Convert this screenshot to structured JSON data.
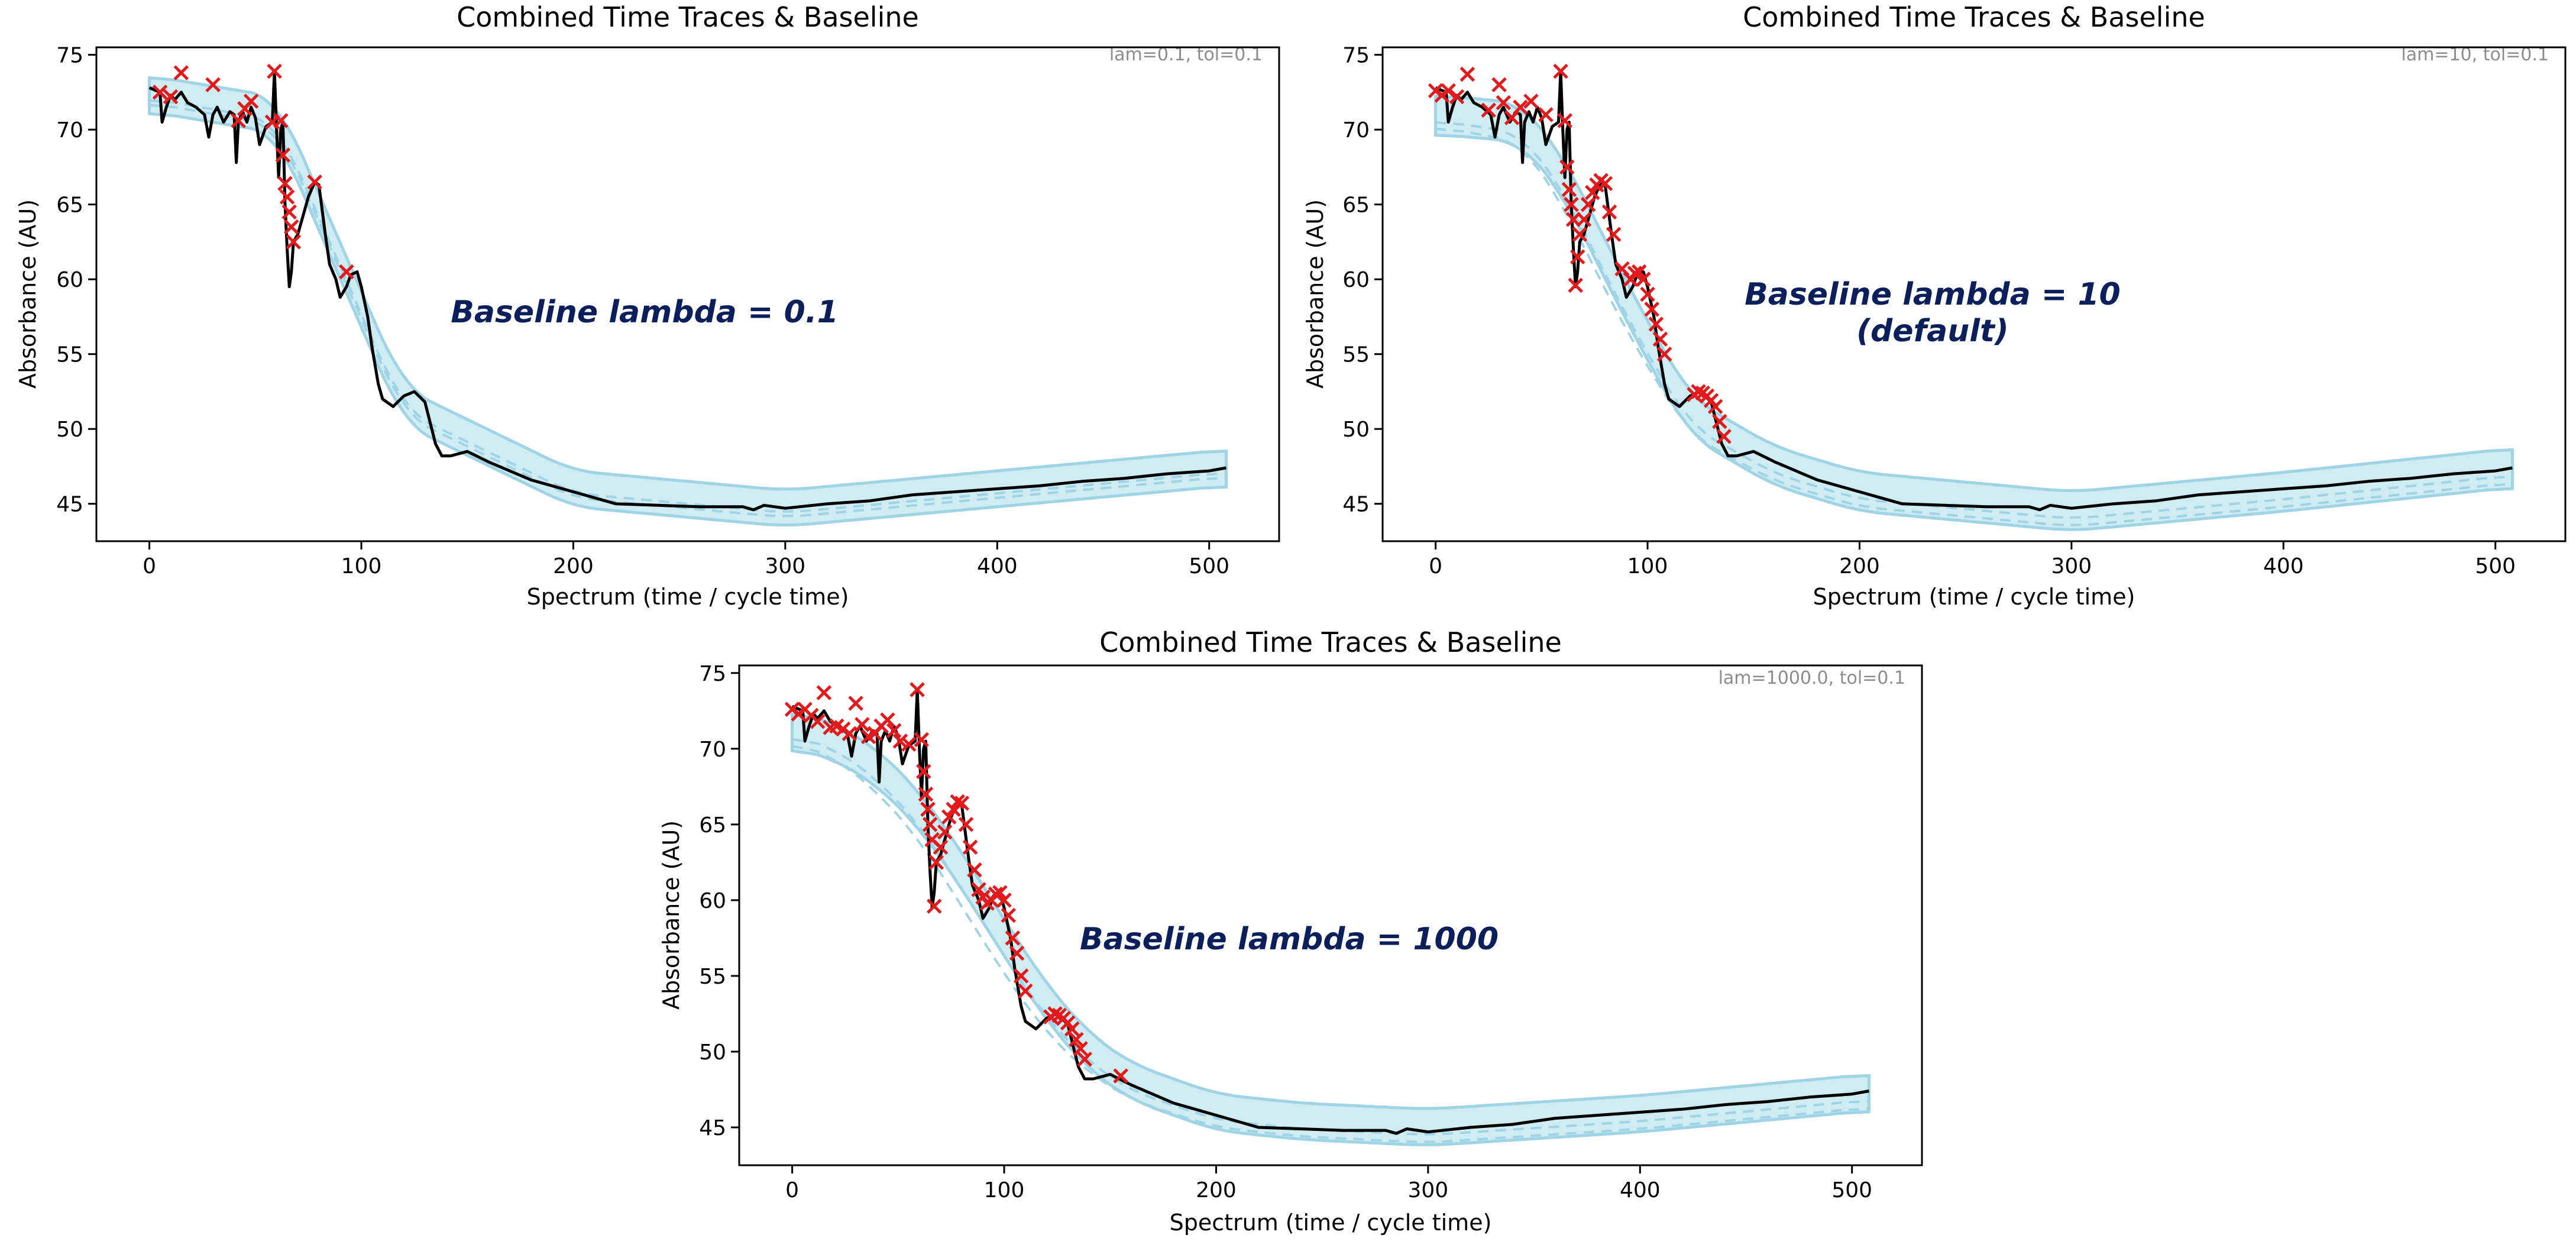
{
  "figure": {
    "background": "#ffffff",
    "colors": {
      "trace": "#000000",
      "band": "#a8dcea",
      "band_edge": "#9fd3e6",
      "dashed": "#9fd3e6",
      "peak_marker": "#e31a1c",
      "annotation": "#0b1f5c",
      "params_text": "#8c8c8c"
    }
  },
  "chart_data": [
    {
      "type": "line",
      "title": "Combined Time Traces & Baseline",
      "xlabel": "Spectrum (time / cycle time)",
      "ylabel": "Absorbance (AU)",
      "params": "lam=0.1, tol=0.1",
      "annotation": [
        "Baseline lambda = 0.1"
      ],
      "xlim": [
        -25,
        533
      ],
      "ylim": [
        42.5,
        75.5
      ],
      "xticks": [
        0,
        100,
        200,
        300,
        400,
        500
      ],
      "yticks": [
        45,
        50,
        55,
        60,
        65,
        70,
        75
      ],
      "grid": false,
      "trace": {
        "x": [
          0,
          5,
          6,
          8,
          10,
          12,
          15,
          18,
          22,
          26,
          28,
          30,
          32,
          35,
          38,
          40,
          41,
          42,
          44,
          46,
          48,
          50,
          52,
          55,
          58,
          59,
          60,
          61,
          62,
          63,
          64,
          65,
          66,
          67,
          68,
          70,
          72,
          75,
          78,
          80,
          83,
          85,
          88,
          90,
          93,
          95,
          98,
          100,
          103,
          105,
          108,
          110,
          115,
          120,
          125,
          130,
          135,
          138,
          142,
          150,
          160,
          170,
          180,
          200,
          220,
          240,
          260,
          280,
          285,
          290,
          300,
          320,
          340,
          360,
          380,
          400,
          420,
          440,
          460,
          480,
          500,
          508
        ],
        "y": [
          72.8,
          72.5,
          70.5,
          71.5,
          72.3,
          72.0,
          72.5,
          71.8,
          71.5,
          71.0,
          69.5,
          71.0,
          71.5,
          70.5,
          71.2,
          71.0,
          67.8,
          70.5,
          71.2,
          70.5,
          71.5,
          70.8,
          69.0,
          70.2,
          70.5,
          73.9,
          70.0,
          66.8,
          70.0,
          70.5,
          65.0,
          62.0,
          59.5,
          60.5,
          62.5,
          63.0,
          64.0,
          65.5,
          66.5,
          66.3,
          63.0,
          61.0,
          60.0,
          58.8,
          59.5,
          60.3,
          60.5,
          59.5,
          57.5,
          55.5,
          53.0,
          52.0,
          51.5,
          52.2,
          52.5,
          51.8,
          49.0,
          48.2,
          48.2,
          48.5,
          47.8,
          47.2,
          46.6,
          45.8,
          45.0,
          44.9,
          44.8,
          44.8,
          44.6,
          44.9,
          44.7,
          45.0,
          45.2,
          45.6,
          45.8,
          46.0,
          46.2,
          46.5,
          46.7,
          47.0,
          47.2,
          47.4
        ]
      },
      "baseline_x": [
        0,
        60,
        120,
        200,
        300,
        400,
        508
      ],
      "baseline_y": [
        72.4,
        71.0,
        51.5,
        46.0,
        44.7,
        46.0,
        47.4
      ],
      "band_halfwidth": 1.2,
      "baseline_dashed": [
        {
          "x": [
            0,
            60,
            120,
            200,
            300,
            400,
            508
          ],
          "y": [
            72.1,
            70.6,
            51.2,
            45.7,
            44.4,
            45.7,
            47.1
          ]
        },
        {
          "x": [
            0,
            60,
            120,
            200,
            300,
            400,
            508
          ],
          "y": [
            71.8,
            70.3,
            50.9,
            45.4,
            44.1,
            45.4,
            46.8
          ]
        }
      ],
      "peaks": {
        "x": [
          5,
          10,
          15,
          30,
          42,
          45,
          48,
          58,
          59,
          62,
          63,
          64,
          65,
          66,
          67,
          68,
          78,
          93
        ],
        "y": [
          72.5,
          72.2,
          73.8,
          73.0,
          70.6,
          71.4,
          71.9,
          70.5,
          73.9,
          70.6,
          68.3,
          66.4,
          65.5,
          64.5,
          63.5,
          62.5,
          66.5,
          60.5
        ]
      }
    },
    {
      "type": "line",
      "title": "Combined Time Traces & Baseline",
      "xlabel": "Spectrum (time / cycle time)",
      "ylabel": "Absorbance (AU)",
      "params": "lam=10, tol=0.1",
      "annotation": [
        "Baseline lambda = 10",
        "(default)"
      ],
      "xlim": [
        -25,
        533
      ],
      "ylim": [
        42.5,
        75.5
      ],
      "xticks": [
        0,
        100,
        200,
        300,
        400,
        500
      ],
      "yticks": [
        45,
        50,
        55,
        60,
        65,
        70,
        75
      ],
      "grid": false,
      "trace": {
        "x": [
          0,
          5,
          6,
          8,
          10,
          12,
          15,
          18,
          22,
          26,
          28,
          30,
          32,
          35,
          38,
          40,
          41,
          42,
          44,
          46,
          48,
          50,
          52,
          55,
          58,
          59,
          60,
          61,
          62,
          63,
          64,
          65,
          66,
          67,
          68,
          70,
          72,
          75,
          78,
          80,
          83,
          85,
          88,
          90,
          93,
          95,
          98,
          100,
          103,
          105,
          108,
          110,
          115,
          120,
          125,
          130,
          135,
          138,
          142,
          150,
          160,
          170,
          180,
          200,
          220,
          240,
          260,
          280,
          285,
          290,
          300,
          320,
          340,
          360,
          380,
          400,
          420,
          440,
          460,
          480,
          500,
          508
        ],
        "y": [
          72.8,
          72.5,
          70.5,
          71.5,
          72.3,
          72.0,
          72.5,
          71.8,
          71.5,
          71.0,
          69.5,
          71.0,
          71.5,
          70.5,
          71.2,
          71.0,
          67.8,
          70.5,
          71.2,
          70.5,
          71.5,
          70.8,
          69.0,
          70.2,
          70.5,
          73.9,
          70.0,
          66.8,
          70.0,
          70.5,
          65.0,
          62.0,
          59.5,
          60.5,
          62.5,
          63.0,
          64.0,
          65.5,
          66.5,
          66.3,
          63.0,
          61.0,
          60.0,
          58.8,
          59.5,
          60.3,
          60.5,
          59.5,
          57.5,
          55.5,
          53.0,
          52.0,
          51.5,
          52.2,
          52.5,
          51.8,
          49.0,
          48.2,
          48.2,
          48.5,
          47.8,
          47.2,
          46.6,
          45.8,
          45.0,
          44.9,
          44.8,
          44.8,
          44.6,
          44.9,
          44.7,
          45.0,
          45.2,
          45.6,
          45.8,
          46.0,
          46.2,
          46.5,
          46.7,
          47.0,
          47.2,
          47.4
        ]
      },
      "baseline_x": [
        0,
        40,
        60,
        90,
        120,
        160,
        200,
        300,
        400,
        508
      ],
      "baseline_y": [
        71.0,
        70.5,
        67.0,
        58.5,
        50.8,
        47.5,
        45.8,
        44.5,
        45.8,
        47.4
      ],
      "band_halfwidth": 1.3,
      "baseline_dashed": [
        {
          "x": [
            0,
            40,
            60,
            90,
            120,
            160,
            200,
            300,
            400,
            508
          ],
          "y": [
            70.6,
            69.8,
            66.0,
            57.5,
            50.2,
            47.0,
            45.3,
            44.0,
            45.3,
            46.9
          ]
        },
        {
          "x": [
            0,
            40,
            60,
            90,
            120,
            160,
            200,
            300,
            400,
            508
          ],
          "y": [
            70.2,
            69.2,
            65.0,
            56.5,
            49.6,
            46.5,
            44.8,
            43.5,
            44.8,
            46.4
          ]
        }
      ],
      "peaks": {
        "x": [
          0,
          3,
          6,
          10,
          15,
          25,
          30,
          32,
          36,
          40,
          45,
          52,
          59,
          61,
          62,
          63,
          64,
          65,
          66,
          67,
          68,
          70,
          72,
          74,
          76,
          78,
          80,
          82,
          84,
          88,
          92,
          94,
          96,
          98,
          100,
          102,
          104,
          106,
          108,
          122,
          124,
          126,
          128,
          130,
          132,
          134,
          136
        ],
        "y": [
          72.6,
          72.3,
          72.6,
          72.2,
          73.7,
          71.3,
          73.0,
          71.8,
          70.8,
          71.5,
          71.9,
          71.0,
          73.9,
          70.6,
          67.5,
          66.0,
          65.0,
          64.0,
          59.6,
          61.5,
          63.0,
          64.0,
          65.0,
          65.8,
          66.3,
          66.6,
          66.4,
          64.5,
          63.0,
          60.7,
          60.0,
          60.4,
          60.5,
          60.0,
          59.0,
          58.0,
          57.0,
          56.0,
          55.0,
          52.3,
          52.5,
          52.4,
          52.2,
          51.9,
          51.5,
          50.5,
          49.5
        ]
      }
    },
    {
      "type": "line",
      "title": "Combined Time Traces & Baseline",
      "xlabel": "Spectrum (time / cycle time)",
      "ylabel": "Absorbance (AU)",
      "params": "lam=1000.0, tol=0.1",
      "annotation": [
        "Baseline lambda = 1000"
      ],
      "xlim": [
        -25,
        533
      ],
      "ylim": [
        42.5,
        75.5
      ],
      "xticks": [
        0,
        100,
        200,
        300,
        400,
        500
      ],
      "yticks": [
        45,
        50,
        55,
        60,
        65,
        70,
        75
      ],
      "grid": false,
      "trace": {
        "x": [
          0,
          5,
          6,
          8,
          10,
          12,
          15,
          18,
          22,
          26,
          28,
          30,
          32,
          35,
          38,
          40,
          41,
          42,
          44,
          46,
          48,
          50,
          52,
          55,
          58,
          59,
          60,
          61,
          62,
          63,
          64,
          65,
          66,
          67,
          68,
          70,
          72,
          75,
          78,
          80,
          83,
          85,
          88,
          90,
          93,
          95,
          98,
          100,
          103,
          105,
          108,
          110,
          115,
          120,
          125,
          130,
          135,
          138,
          142,
          150,
          160,
          170,
          180,
          200,
          220,
          240,
          260,
          280,
          285,
          290,
          300,
          320,
          340,
          360,
          380,
          400,
          420,
          440,
          460,
          480,
          500,
          508
        ],
        "y": [
          72.8,
          72.5,
          70.5,
          71.5,
          72.3,
          72.0,
          72.5,
          71.8,
          71.5,
          71.0,
          69.5,
          71.0,
          71.5,
          70.5,
          71.2,
          71.0,
          67.8,
          70.5,
          71.2,
          70.5,
          71.5,
          70.8,
          69.0,
          70.2,
          70.5,
          73.9,
          70.0,
          66.8,
          70.0,
          70.5,
          65.0,
          62.0,
          59.5,
          60.5,
          62.5,
          63.0,
          64.0,
          65.5,
          66.5,
          66.3,
          63.0,
          61.0,
          60.0,
          58.8,
          59.5,
          60.3,
          60.5,
          59.5,
          57.5,
          55.5,
          53.0,
          52.0,
          51.5,
          52.2,
          52.5,
          51.8,
          49.0,
          48.2,
          48.2,
          48.5,
          47.8,
          47.2,
          46.6,
          45.8,
          45.0,
          44.9,
          44.8,
          44.8,
          44.6,
          44.9,
          44.7,
          45.0,
          45.2,
          45.6,
          45.8,
          46.0,
          46.2,
          46.5,
          46.7,
          47.0,
          47.2,
          47.4
        ]
      },
      "baseline_x": [
        0,
        20,
        40,
        60,
        80,
        100,
        120,
        140,
        160,
        200,
        240,
        300,
        400,
        508
      ],
      "baseline_y": [
        71.3,
        70.5,
        68.8,
        66.0,
        62.0,
        57.5,
        53.2,
        50.0,
        48.0,
        46.0,
        45.4,
        45.0,
        45.9,
        47.3
      ],
      "band_halfwidth": 1.2,
      "baseline_dashed": [
        {
          "x": [
            0,
            20,
            40,
            60,
            80,
            100,
            120,
            140,
            160,
            200,
            240,
            300,
            400,
            508
          ],
          "y": [
            70.9,
            70.0,
            68.0,
            65.0,
            60.8,
            56.3,
            52.2,
            49.3,
            47.4,
            45.5,
            44.9,
            44.5,
            45.4,
            46.8
          ]
        },
        {
          "x": [
            0,
            20,
            40,
            60,
            80,
            100,
            120,
            140,
            160,
            200,
            240,
            300,
            400,
            508
          ],
          "y": [
            70.5,
            69.4,
            67.2,
            64.0,
            59.6,
            55.1,
            51.2,
            48.6,
            46.8,
            45.0,
            44.4,
            44.0,
            44.9,
            46.3
          ]
        }
      ],
      "peaks": {
        "x": [
          0,
          3,
          6,
          9,
          12,
          15,
          18,
          21,
          24,
          27,
          30,
          33,
          36,
          39,
          42,
          45,
          48,
          51,
          55,
          59,
          61,
          62,
          63,
          64,
          65,
          66,
          67,
          68,
          70,
          72,
          74,
          76,
          78,
          80,
          82,
          84,
          86,
          88,
          90,
          92,
          94,
          96,
          98,
          100,
          102,
          104,
          106,
          108,
          110,
          122,
          124,
          126,
          128,
          130,
          132,
          134,
          136,
          138,
          155
        ],
        "y": [
          72.6,
          72.3,
          72.6,
          72.2,
          71.8,
          73.7,
          71.4,
          71.5,
          71.3,
          71.0,
          73.0,
          71.6,
          70.8,
          71.0,
          71.5,
          71.9,
          71.2,
          70.5,
          70.3,
          73.9,
          70.6,
          68.5,
          67.0,
          66.0,
          65.0,
          64.0,
          59.6,
          62.5,
          63.5,
          64.5,
          65.5,
          66.0,
          66.5,
          66.4,
          65.0,
          63.5,
          62.0,
          60.7,
          60.2,
          59.8,
          60.0,
          60.4,
          60.5,
          60.0,
          59.0,
          57.5,
          56.5,
          55.0,
          54.0,
          52.3,
          52.5,
          52.4,
          52.2,
          51.9,
          51.5,
          50.8,
          50.2,
          49.5,
          48.4
        ]
      }
    }
  ]
}
